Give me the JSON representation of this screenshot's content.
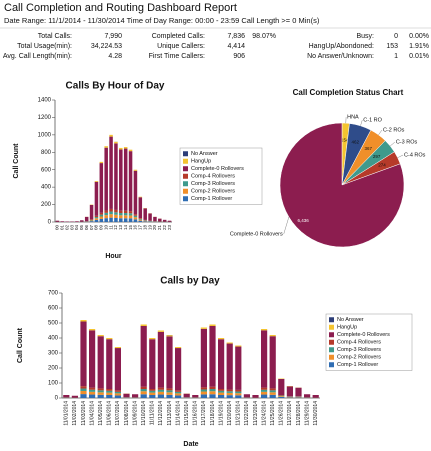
{
  "header": {
    "title": "Call Completion and Routing Dashboard Report",
    "subtitle": "Date Range: 11/1/2014 - 11/30/2014   Time of Day Range: 00:00 - 23:59   Call Length >= 0 Min(s)"
  },
  "stats": {
    "rows": [
      [
        {
          "label": "Total Calls:",
          "value": "7,990"
        },
        {
          "label": "Completed Calls:",
          "value": "7,836",
          "percent": "98.07%"
        },
        {
          "label": "Busy:",
          "value": "0",
          "percent": "0.00%"
        }
      ],
      [
        {
          "label": "Total Usage(min):",
          "value": "34,224.53"
        },
        {
          "label": "Unique Callers:",
          "value": "4,414"
        },
        {
          "label": "HangUp/Abondoned:",
          "value": "153",
          "percent": "1.91%"
        }
      ],
      [
        {
          "label": "Avg. Call Length(min):",
          "value": "4.28"
        },
        {
          "label": "First Time Callers:",
          "value": "906"
        },
        {
          "label": "No Answer/Unknown:",
          "value": "1",
          "percent": "0.01%"
        }
      ]
    ]
  },
  "chart_data": [
    {
      "type": "stacked_bar",
      "title": "Calls By Hour of Day",
      "x_label": "Hour",
      "y_label": "Call Count",
      "categories": [
        "00",
        "01",
        "02",
        "03",
        "04",
        "05",
        "06",
        "07",
        "08",
        "09",
        "10",
        "11",
        "12",
        "13",
        "14",
        "15",
        "16",
        "17",
        "18",
        "19",
        "20",
        "21",
        "22",
        "23"
      ],
      "ylim": [
        0,
        1400
      ],
      "yticks": [
        0,
        200,
        400,
        600,
        800,
        1000,
        1200,
        1400
      ],
      "series": [
        {
          "name": "No Answer",
          "color": "#2d3e78",
          "values": [
            0,
            0,
            0,
            0,
            0,
            0,
            0,
            0,
            0,
            0,
            0,
            0,
            1,
            0,
            0,
            0,
            0,
            0,
            0,
            0,
            0,
            0,
            0,
            0
          ]
        },
        {
          "name": "HangUp",
          "color": "#f4c430",
          "values": [
            0,
            0,
            0,
            0,
            0,
            0,
            1,
            4,
            9,
            14,
            17,
            20,
            18,
            17,
            17,
            17,
            12,
            6,
            3,
            2,
            1,
            1,
            0,
            0
          ]
        },
        {
          "name": "Complete-0 Rollovers",
          "color": "#8c1d4f",
          "values": [
            13,
            8,
            5,
            5,
            8,
            17,
            50,
            166,
            390,
            571,
            722,
            830,
            763,
            704,
            714,
            688,
            498,
            239,
            133,
            83,
            50,
            33,
            21,
            13
          ]
        },
        {
          "name": "Comp-4 Rollovers",
          "color": "#b63a2a",
          "values": [
            0,
            0,
            0,
            0,
            0,
            0,
            2,
            6,
            14,
            21,
            26,
            30,
            28,
            26,
            26,
            25,
            18,
            9,
            5,
            3,
            2,
            1,
            1,
            0
          ]
        },
        {
          "name": "Comp-3 Rollovers",
          "color": "#3f9a8c",
          "values": [
            0,
            0,
            0,
            0,
            0,
            1,
            2,
            6,
            14,
            21,
            26,
            30,
            28,
            26,
            26,
            25,
            18,
            9,
            5,
            3,
            2,
            1,
            1,
            0
          ]
        },
        {
          "name": "Comp-2 Rollovers",
          "color": "#f08f2a",
          "values": [
            1,
            0,
            0,
            0,
            0,
            1,
            2,
            8,
            19,
            28,
            35,
            40,
            37,
            34,
            34,
            33,
            24,
            12,
            6,
            4,
            2,
            2,
            1,
            1
          ]
        },
        {
          "name": "Comp-1 Rollover",
          "color": "#2f6db3",
          "values": [
            1,
            0,
            0,
            0,
            0,
            1,
            3,
            10,
            24,
            35,
            44,
            50,
            46,
            43,
            43,
            42,
            30,
            15,
            8,
            5,
            3,
            2,
            1,
            1
          ]
        }
      ]
    },
    {
      "type": "pie",
      "title": "Call Completion Status Chart",
      "categories": [
        "HNA",
        "C-1 RO",
        "C-2 ROs",
        "C-3 ROs",
        "C-4 ROs",
        "Complete-0 Rollovers"
      ],
      "values": [
        154,
        462,
        367,
        297,
        274,
        6436
      ],
      "value_labels": [
        "154",
        "462",
        "367",
        "297",
        "274",
        "6,436"
      ],
      "colors": [
        "#f4c430",
        "#2f4c8a",
        "#f08f2a",
        "#3f9a8c",
        "#b63a2a",
        "#8c1d4f"
      ]
    },
    {
      "type": "stacked_bar",
      "title": "Calls by Day",
      "x_label": "Date",
      "y_label": "Call Count",
      "categories": [
        "11/01/2014",
        "11/02/2014",
        "11/03/2014",
        "11/04/2014",
        "11/05/2014",
        "11/06/2014",
        "11/07/2014",
        "11/08/2014",
        "11/09/2014",
        "11/10/2014",
        "11/11/2014",
        "11/12/2014",
        "11/13/2014",
        "11/14/2014",
        "11/15/2014",
        "11/16/2014",
        "11/17/2014",
        "11/18/2014",
        "11/19/2014",
        "11/20/2014",
        "11/21/2014",
        "11/22/2014",
        "11/23/2014",
        "11/24/2014",
        "11/25/2014",
        "11/26/2014",
        "11/27/2014",
        "11/28/2014",
        "11/29/2014",
        "11/30/2014"
      ],
      "ylim": [
        0,
        700
      ],
      "yticks": [
        0,
        100,
        200,
        300,
        400,
        500,
        600,
        700
      ],
      "series": [
        {
          "name": "No Answer",
          "color": "#2d3e78",
          "values": [
            0,
            0,
            0,
            0,
            0,
            0,
            0,
            0,
            0,
            0,
            0,
            0,
            1,
            0,
            0,
            0,
            0,
            0,
            0,
            0,
            0,
            0,
            0,
            0,
            0,
            0,
            0,
            0,
            0,
            0
          ]
        },
        {
          "name": "HangUp",
          "color": "#f4c430",
          "values": [
            0,
            0,
            10,
            9,
            8,
            8,
            7,
            1,
            0,
            10,
            8,
            9,
            8,
            7,
            1,
            0,
            9,
            10,
            8,
            7,
            7,
            0,
            0,
            9,
            8,
            3,
            2,
            1,
            0,
            0
          ]
        },
        {
          "name": "Complete-0 Rollovers",
          "color": "#8c1d4f",
          "values": [
            16,
            13,
            431,
            382,
            348,
            332,
            282,
            24,
            21,
            405,
            332,
            372,
            347,
            282,
            24,
            16,
            390,
            405,
            332,
            307,
            289,
            21,
            18,
            382,
            348,
            107,
            67,
            58,
            21,
            18
          ]
        },
        {
          "name": "Comp-4 Rollovers",
          "color": "#b63a2a",
          "values": [
            1,
            0,
            16,
            14,
            13,
            12,
            10,
            1,
            1,
            15,
            12,
            14,
            13,
            10,
            1,
            1,
            14,
            15,
            12,
            11,
            11,
            1,
            0,
            14,
            13,
            4,
            2,
            2,
            1,
            0
          ]
        },
        {
          "name": "Comp-3 Rollovers",
          "color": "#3f9a8c",
          "values": [
            1,
            0,
            16,
            14,
            13,
            12,
            10,
            1,
            1,
            15,
            12,
            14,
            13,
            10,
            1,
            1,
            14,
            15,
            12,
            11,
            11,
            1,
            0,
            14,
            13,
            4,
            2,
            2,
            1,
            0
          ]
        },
        {
          "name": "Comp-2 Rollovers",
          "color": "#f08f2a",
          "values": [
            1,
            1,
            21,
            18,
            17,
            16,
            14,
            1,
            1,
            20,
            16,
            18,
            17,
            14,
            1,
            1,
            19,
            20,
            16,
            15,
            14,
            1,
            1,
            18,
            17,
            5,
            3,
            3,
            1,
            1
          ]
        },
        {
          "name": "Comp-1 Rollover",
          "color": "#2f6db3",
          "values": [
            1,
            1,
            26,
            23,
            21,
            20,
            17,
            2,
            1,
            25,
            20,
            23,
            21,
            17,
            2,
            1,
            24,
            25,
            20,
            19,
            18,
            1,
            1,
            23,
            21,
            7,
            4,
            4,
            1,
            1
          ]
        }
      ]
    }
  ]
}
